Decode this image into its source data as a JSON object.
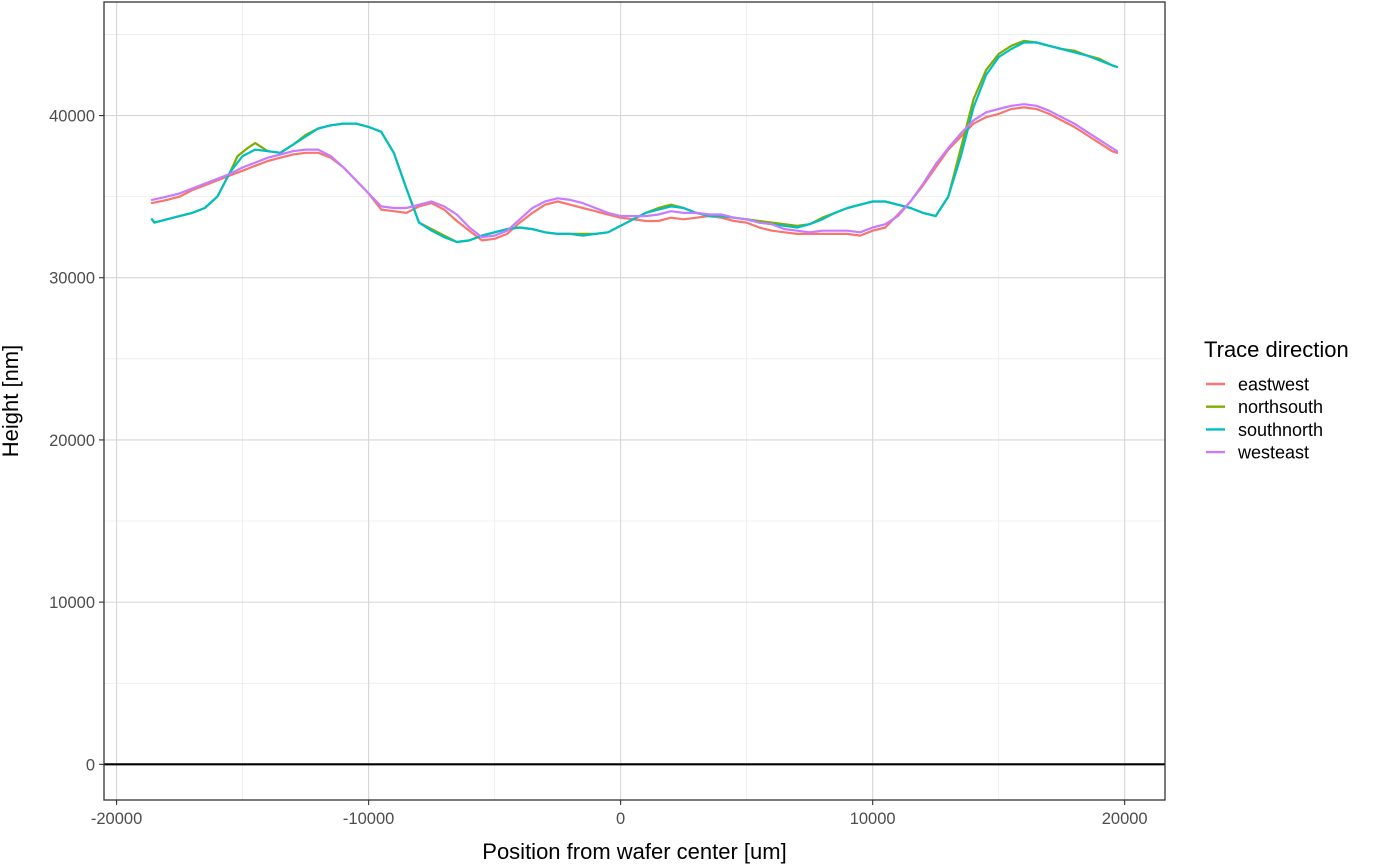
{
  "chart_data": {
    "type": "line",
    "xlabel": "Position from wafer center [um]",
    "ylabel": "Height [nm]",
    "xlim": [
      -20500,
      21600
    ],
    "ylim": [
      -2200,
      47000
    ],
    "x_ticks": [
      -20000,
      -10000,
      0,
      10000,
      20000
    ],
    "y_ticks": [
      0,
      10000,
      20000,
      30000,
      40000
    ],
    "x_tick_labels": [
      "-20000",
      "-10000",
      "0",
      "10000",
      "20000"
    ],
    "y_tick_labels": [
      "0",
      "10000",
      "20000",
      "30000",
      "40000"
    ],
    "hline": 0,
    "grid": true,
    "legend": {
      "title": "Trace direction",
      "position": "right"
    },
    "series": [
      {
        "name": "eastwest",
        "color": "#F8766D",
        "x": [
          -18600,
          -18000,
          -17500,
          -17000,
          -16500,
          -16000,
          -15500,
          -15000,
          -14500,
          -14000,
          -13500,
          -13000,
          -12500,
          -12000,
          -11500,
          -11000,
          -10500,
          -10000,
          -9500,
          -9000,
          -8500,
          -8000,
          -7500,
          -7000,
          -6500,
          -6000,
          -5500,
          -5000,
          -4500,
          -4000,
          -3500,
          -3000,
          -2500,
          -2000,
          -1500,
          -1000,
          -500,
          0,
          500,
          1000,
          1500,
          2000,
          2500,
          3000,
          3500,
          4000,
          4500,
          5000,
          5500,
          6000,
          6500,
          7000,
          7500,
          8000,
          8500,
          9000,
          9500,
          10000,
          10500,
          11000,
          11500,
          12000,
          12500,
          13000,
          13500,
          14000,
          14500,
          15000,
          15500,
          16000,
          16500,
          17000,
          17500,
          18000,
          18500,
          19000,
          19500,
          19700
        ],
        "y": [
          34600,
          34800,
          35000,
          35400,
          35700,
          36000,
          36300,
          36600,
          36900,
          37200,
          37400,
          37600,
          37700,
          37700,
          37400,
          36800,
          36000,
          35200,
          34200,
          34100,
          34000,
          34400,
          34600,
          34200,
          33500,
          32900,
          32300,
          32400,
          32700,
          33400,
          34000,
          34500,
          34700,
          34500,
          34300,
          34100,
          33900,
          33700,
          33600,
          33500,
          33500,
          33700,
          33600,
          33700,
          33800,
          33700,
          33500,
          33400,
          33100,
          32900,
          32800,
          32700,
          32700,
          32700,
          32700,
          32700,
          32600,
          32900,
          33100,
          33900,
          34700,
          35700,
          36800,
          37900,
          38700,
          39500,
          39900,
          40100,
          40400,
          40500,
          40400,
          40100,
          39700,
          39300,
          38800,
          38300,
          37800,
          37700
        ]
      },
      {
        "name": "northsouth",
        "color": "#7CAE00",
        "x": [
          -18600,
          -18500,
          -18000,
          -17500,
          -17000,
          -16500,
          -16000,
          -15500,
          -15200,
          -14800,
          -14500,
          -14000,
          -13500,
          -13000,
          -12500,
          -12000,
          -11500,
          -11000,
          -10500,
          -10000,
          -9500,
          -9000,
          -8500,
          -8000,
          -7500,
          -7000,
          -6500,
          -6000,
          -5500,
          -5000,
          -4500,
          -4000,
          -3500,
          -3000,
          -2500,
          -2000,
          -1500,
          -1000,
          -500,
          0,
          500,
          1000,
          1500,
          2000,
          2500,
          3000,
          3500,
          4000,
          4500,
          5000,
          5500,
          6000,
          6500,
          7000,
          7500,
          8000,
          8500,
          9000,
          9500,
          10000,
          10500,
          11000,
          11500,
          12000,
          12500,
          13000,
          13500,
          14000,
          14500,
          15000,
          15500,
          16000,
          16500,
          17000,
          17500,
          18000,
          18500,
          19000,
          19500,
          19700
        ],
        "y": [
          33600,
          33400,
          33600,
          33800,
          34000,
          34300,
          35000,
          36500,
          37500,
          38000,
          38300,
          37800,
          37700,
          38200,
          38800,
          39200,
          39400,
          39500,
          39500,
          39300,
          39000,
          37700,
          35500,
          33400,
          33000,
          32600,
          32200,
          32300,
          32600,
          32800,
          33000,
          33100,
          33000,
          32800,
          32700,
          32700,
          32700,
          32700,
          32800,
          33200,
          33600,
          34000,
          34300,
          34500,
          34300,
          34000,
          33900,
          33800,
          33700,
          33600,
          33500,
          33400,
          33300,
          33200,
          33300,
          33700,
          34000,
          34300,
          34500,
          34700,
          34700,
          34500,
          34300,
          34000,
          33800,
          35000,
          38000,
          41000,
          42800,
          43800,
          44300,
          44600,
          44500,
          44300,
          44100,
          44000,
          43700,
          43500,
          43100,
          43000
        ]
      },
      {
        "name": "southnorth",
        "color": "#00BFC4",
        "x": [
          -18600,
          -18500,
          -18000,
          -17500,
          -17000,
          -16500,
          -16000,
          -15500,
          -15000,
          -14500,
          -14000,
          -13500,
          -13000,
          -12500,
          -12000,
          -11500,
          -11000,
          -10500,
          -10000,
          -9500,
          -9000,
          -8500,
          -8000,
          -7500,
          -7000,
          -6500,
          -6000,
          -5500,
          -5000,
          -4500,
          -4000,
          -3500,
          -3000,
          -2500,
          -2000,
          -1500,
          -1000,
          -500,
          0,
          500,
          1000,
          1500,
          2000,
          2500,
          3000,
          3500,
          4000,
          4500,
          5000,
          5500,
          6000,
          6500,
          7000,
          7500,
          8000,
          8500,
          9000,
          9500,
          10000,
          10500,
          11000,
          11500,
          12000,
          12500,
          13000,
          13500,
          14000,
          14500,
          15000,
          15500,
          16000,
          16500,
          17000,
          17500,
          18000,
          18500,
          19000,
          19500,
          19700
        ],
        "y": [
          33600,
          33400,
          33600,
          33800,
          34000,
          34300,
          35000,
          36500,
          37500,
          37900,
          37800,
          37700,
          38200,
          38700,
          39200,
          39400,
          39500,
          39500,
          39300,
          39000,
          37700,
          35500,
          33400,
          32900,
          32500,
          32200,
          32300,
          32600,
          32800,
          33000,
          33100,
          33000,
          32800,
          32700,
          32700,
          32600,
          32700,
          32800,
          33200,
          33600,
          34000,
          34200,
          34400,
          34300,
          34000,
          33800,
          33800,
          33700,
          33600,
          33400,
          33300,
          33200,
          33100,
          33300,
          33600,
          34000,
          34300,
          34500,
          34700,
          34700,
          34500,
          34300,
          34000,
          33800,
          35000,
          37500,
          40500,
          42500,
          43600,
          44100,
          44500,
          44500,
          44300,
          44100,
          43900,
          43700,
          43400,
          43100,
          43000
        ]
      },
      {
        "name": "westeast",
        "color": "#C77CFF",
        "x": [
          -18600,
          -18000,
          -17500,
          -17000,
          -16500,
          -16000,
          -15500,
          -15000,
          -14500,
          -14000,
          -13500,
          -13000,
          -12500,
          -12000,
          -11500,
          -11000,
          -10500,
          -10000,
          -9500,
          -9000,
          -8500,
          -8000,
          -7500,
          -7000,
          -6500,
          -6000,
          -5500,
          -5000,
          -4500,
          -4000,
          -3500,
          -3000,
          -2500,
          -2000,
          -1500,
          -1000,
          -500,
          0,
          500,
          1000,
          1500,
          2000,
          2500,
          3000,
          3500,
          4000,
          4500,
          5000,
          5500,
          6000,
          6500,
          7000,
          7500,
          8000,
          8500,
          9000,
          9500,
          10000,
          10500,
          11000,
          11500,
          12000,
          12500,
          13000,
          13500,
          14000,
          14500,
          15000,
          15500,
          16000,
          16500,
          17000,
          17500,
          18000,
          18500,
          19000,
          19500,
          19700
        ],
        "y": [
          34800,
          35000,
          35200,
          35500,
          35800,
          36100,
          36400,
          36800,
          37100,
          37400,
          37600,
          37800,
          37900,
          37900,
          37500,
          36800,
          36000,
          35200,
          34400,
          34300,
          34300,
          34500,
          34700,
          34400,
          33900,
          33100,
          32500,
          32600,
          32900,
          33600,
          34300,
          34700,
          34900,
          34800,
          34600,
          34300,
          34000,
          33800,
          33800,
          33800,
          33900,
          34100,
          34000,
          34000,
          33900,
          33900,
          33700,
          33600,
          33400,
          33300,
          33000,
          32900,
          32800,
          32900,
          32900,
          32900,
          32800,
          33100,
          33300,
          33800,
          34700,
          35800,
          37000,
          38000,
          38900,
          39700,
          40200,
          40400,
          40600,
          40700,
          40600,
          40300,
          39900,
          39500,
          39000,
          38500,
          38000,
          37800
        ]
      }
    ]
  }
}
